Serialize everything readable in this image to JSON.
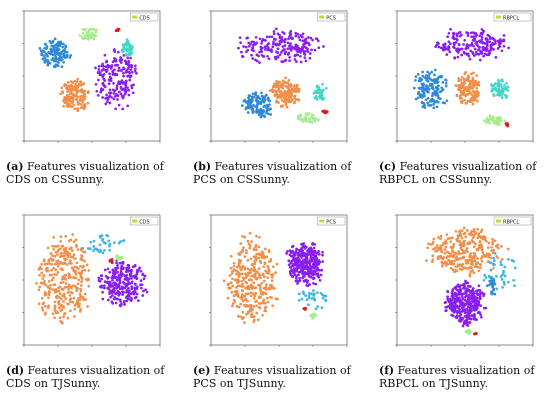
{
  "colors": {
    "purple": "#8a1ef0",
    "orange": "#f28e48",
    "blue": "#2e8ad8",
    "lightgreen": "#a5ec8d",
    "teal": "#43d7c5",
    "red": "#e11b1b",
    "cyan": "#39b6e3",
    "legend_swatch": "#c9d636"
  },
  "panels": [
    {
      "caption_label": "(a)",
      "caption_text": "Features visualization of CDS on CSSunny.",
      "chart_data": {
        "type": "scatter",
        "legend": "CDS",
        "legend_position": "top-right",
        "xlim": [
          -100,
          100
        ],
        "ylim": [
          -100,
          100
        ],
        "clusters": [
          {
            "color": "blue",
            "cx": -55,
            "cy": 35,
            "rx": 25,
            "ry": 25,
            "n": 130
          },
          {
            "color": "orange",
            "cx": -25,
            "cy": -30,
            "rx": 23,
            "ry": 28,
            "n": 160
          },
          {
            "color": "purple",
            "cx": 35,
            "cy": -5,
            "rx": 35,
            "ry": 50,
            "n": 190
          },
          {
            "color": "lightgreen",
            "cx": -5,
            "cy": 65,
            "rx": 18,
            "ry": 10,
            "n": 45
          },
          {
            "color": "red",
            "cx": 38,
            "cy": 70,
            "rx": 4,
            "ry": 3,
            "n": 10
          },
          {
            "color": "teal",
            "cx": 52,
            "cy": 42,
            "rx": 10,
            "ry": 16,
            "n": 45
          }
        ]
      }
    },
    {
      "caption_label": "(b)",
      "caption_text": "Features visualization of PCS on CSSunny.",
      "chart_data": {
        "type": "scatter",
        "legend": "PCS",
        "legend_position": "top-right",
        "xlim": [
          -100,
          100
        ],
        "ylim": [
          -100,
          100
        ],
        "clusters": [
          {
            "color": "purple",
            "cx": 0,
            "cy": 45,
            "rx": 70,
            "ry": 30,
            "n": 210
          },
          {
            "color": "orange",
            "cx": 10,
            "cy": -25,
            "rx": 25,
            "ry": 25,
            "n": 160
          },
          {
            "color": "blue",
            "cx": -30,
            "cy": -45,
            "rx": 25,
            "ry": 22,
            "n": 120
          },
          {
            "color": "teal",
            "cx": 60,
            "cy": -25,
            "rx": 12,
            "ry": 15,
            "n": 35
          },
          {
            "color": "lightgreen",
            "cx": 42,
            "cy": -65,
            "rx": 18,
            "ry": 9,
            "n": 40
          },
          {
            "color": "red",
            "cx": 67,
            "cy": -55,
            "rx": 5,
            "ry": 3,
            "n": 10
          }
        ]
      }
    },
    {
      "caption_label": "(c)",
      "caption_text": "Features visualization of RBPCL on CSSunny.",
      "chart_data": {
        "type": "scatter",
        "legend": "RBPCL",
        "legend_position": "top-right",
        "xlim": [
          -100,
          100
        ],
        "ylim": [
          -100,
          100
        ],
        "clusters": [
          {
            "color": "purple",
            "cx": 10,
            "cy": 50,
            "rx": 60,
            "ry": 28,
            "n": 200
          },
          {
            "color": "blue",
            "cx": -50,
            "cy": -20,
            "rx": 30,
            "ry": 35,
            "n": 150
          },
          {
            "color": "orange",
            "cx": 5,
            "cy": -20,
            "rx": 22,
            "ry": 28,
            "n": 150
          },
          {
            "color": "teal",
            "cx": 50,
            "cy": -20,
            "rx": 18,
            "ry": 18,
            "n": 60
          },
          {
            "color": "lightgreen",
            "cx": 42,
            "cy": -68,
            "rx": 18,
            "ry": 9,
            "n": 40
          },
          {
            "color": "red",
            "cx": 62,
            "cy": -75,
            "rx": 4,
            "ry": 3,
            "n": 10
          }
        ]
      }
    },
    {
      "caption_label": "(d)",
      "caption_text": "Features visualization of CDS on TJSunny.",
      "chart_data": {
        "type": "scatter",
        "legend": "CDS",
        "legend_position": "top-right",
        "xlim": [
          -100,
          100
        ],
        "ylim": [
          -100,
          100
        ],
        "clusters": [
          {
            "color": "orange",
            "cx": -40,
            "cy": 0,
            "rx": 45,
            "ry": 75,
            "n": 330
          },
          {
            "color": "purple",
            "cx": 45,
            "cy": -5,
            "rx": 40,
            "ry": 38,
            "n": 270
          },
          {
            "color": "cyan",
            "cx": 15,
            "cy": 55,
            "rx": 35,
            "ry": 20,
            "n": 35
          },
          {
            "color": "lightgreen",
            "cx": 40,
            "cy": 35,
            "rx": 6,
            "ry": 4,
            "n": 14
          },
          {
            "color": "red",
            "cx": 28,
            "cy": 30,
            "rx": 3,
            "ry": 2,
            "n": 6
          }
        ]
      }
    },
    {
      "caption_label": "(e)",
      "caption_text": "Features visualization of PCS on TJSunny.",
      "chart_data": {
        "type": "scatter",
        "legend": "PCS",
        "legend_position": "top-right",
        "xlim": [
          -100,
          100
        ],
        "ylim": [
          -100,
          100
        ],
        "clusters": [
          {
            "color": "orange",
            "cx": -40,
            "cy": 0,
            "rx": 45,
            "ry": 75,
            "n": 330
          },
          {
            "color": "purple",
            "cx": 38,
            "cy": 25,
            "rx": 30,
            "ry": 40,
            "n": 320
          },
          {
            "color": "cyan",
            "cx": 50,
            "cy": -30,
            "rx": 30,
            "ry": 20,
            "n": 30
          },
          {
            "color": "lightgreen",
            "cx": 50,
            "cy": -55,
            "rx": 6,
            "ry": 5,
            "n": 12
          },
          {
            "color": "red",
            "cx": 38,
            "cy": -45,
            "rx": 3,
            "ry": 3,
            "n": 6
          }
        ]
      }
    },
    {
      "caption_label": "(f)",
      "caption_text": "Features visualization of RBPCL on TJSunny.",
      "chart_data": {
        "type": "scatter",
        "legend": "RBPCL",
        "legend_position": "top-right",
        "xlim": [
          -100,
          100
        ],
        "ylim": [
          -100,
          100
        ],
        "clusters": [
          {
            "color": "orange",
            "cx": 0,
            "cy": 45,
            "rx": 65,
            "ry": 40,
            "n": 300
          },
          {
            "color": "purple",
            "cx": 0,
            "cy": -35,
            "rx": 32,
            "ry": 38,
            "n": 340
          },
          {
            "color": "cyan",
            "cx": 50,
            "cy": 10,
            "rx": 30,
            "ry": 40,
            "n": 40
          },
          {
            "color": "blue",
            "cx": 40,
            "cy": -10,
            "rx": 8,
            "ry": 15,
            "n": 25
          },
          {
            "color": "lightgreen",
            "cx": 5,
            "cy": -80,
            "rx": 5,
            "ry": 4,
            "n": 12
          },
          {
            "color": "red",
            "cx": 15,
            "cy": -82,
            "rx": 3,
            "ry": 2,
            "n": 6
          }
        ]
      }
    }
  ]
}
